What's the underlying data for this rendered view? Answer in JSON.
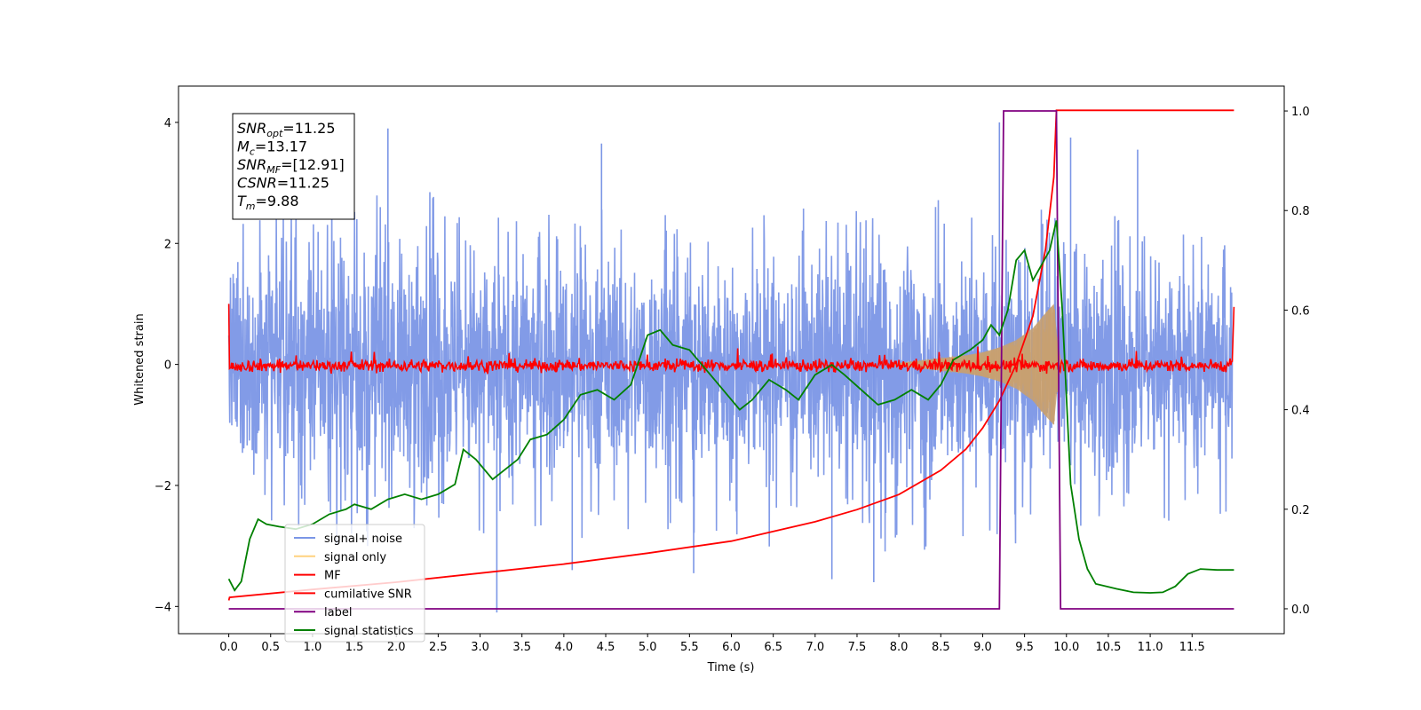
{
  "chart_data": {
    "type": "line",
    "xlabel": "Time (s)",
    "ylabel": "Whitened strain",
    "xlim": [
      -0.6,
      12.6
    ],
    "ylim_left": [
      -4.45,
      4.6
    ],
    "ylim_right": [
      -0.05,
      1.05
    ],
    "x_ticks": [
      "0.0",
      "0.5",
      "1.0",
      "1.5",
      "2.0",
      "2.5",
      "3.0",
      "3.5",
      "4.0",
      "4.5",
      "5.0",
      "5.5",
      "6.0",
      "6.5",
      "7.0",
      "7.5",
      "8.0",
      "8.5",
      "9.0",
      "9.5",
      "10.0",
      "10.5",
      "11.0",
      "11.5"
    ],
    "y_ticks_left": [
      "−4",
      "−2",
      "0",
      "2",
      "4"
    ],
    "y_ticks_right": [
      "0.0",
      "0.2",
      "0.4",
      "0.6",
      "0.8",
      "1.0"
    ],
    "legend": {
      "location": "lower-left",
      "entries": [
        {
          "label": "signal+ noise",
          "color": "#7b96e6"
        },
        {
          "label": "signal only",
          "color": "#ffd27f"
        },
        {
          "label": "MF",
          "color": "#ff0000"
        },
        {
          "label": "cumilative SNR",
          "color": "#ff0000"
        },
        {
          "label": "label",
          "color": "#800080"
        },
        {
          "label": "signal statistics",
          "color": "#008000"
        }
      ]
    },
    "annotation": [
      {
        "name": "SNR",
        "sub": "opt",
        "value": "=11.25"
      },
      {
        "name": "M",
        "sub": "c",
        "value": "=13.17"
      },
      {
        "name": "SNR",
        "sub": "MF",
        "value": "=[12.91]"
      },
      {
        "name": "CSNR",
        "sub": "",
        "value": "=11.25"
      },
      {
        "name": "T",
        "sub": "m",
        "value": "=9.88"
      }
    ],
    "series": [
      {
        "name": "signal+ noise",
        "axis": "left",
        "color": "#7b96e6",
        "description": "dense white noise between about -3.5 and 4",
        "envelope_upper": [
          [
            0.0,
            2.3
          ],
          [
            0.5,
            2.5
          ],
          [
            1.0,
            2.6
          ],
          [
            2.0,
            2.8
          ],
          [
            3.0,
            2.6
          ],
          [
            4.0,
            2.4
          ],
          [
            5.0,
            2.5
          ],
          [
            6.0,
            2.4
          ],
          [
            7.0,
            2.5
          ],
          [
            8.0,
            2.6
          ],
          [
            9.0,
            2.6
          ],
          [
            10.0,
            2.4
          ],
          [
            11.0,
            2.3
          ],
          [
            12.0,
            2.2
          ]
        ],
        "envelope_lower": [
          [
            0.0,
            -2.6
          ],
          [
            1.0,
            -2.9
          ],
          [
            2.0,
            -3.0
          ],
          [
            3.0,
            -2.9
          ],
          [
            4.0,
            -2.8
          ],
          [
            5.0,
            -2.8
          ],
          [
            6.0,
            -2.9
          ],
          [
            7.0,
            -2.9
          ],
          [
            8.0,
            -3.0
          ],
          [
            9.0,
            -2.9
          ],
          [
            10.0,
            -2.8
          ],
          [
            11.0,
            -2.7
          ],
          [
            12.0,
            -2.6
          ]
        ],
        "spikes": [
          [
            1.9,
            3.9
          ],
          [
            4.45,
            3.65
          ],
          [
            9.2,
            4.0
          ],
          [
            10.05,
            3.75
          ],
          [
            10.85,
            3.55
          ],
          [
            3.2,
            -4.1
          ],
          [
            7.2,
            -3.55
          ],
          [
            7.7,
            -3.6
          ],
          [
            4.1,
            -3.4
          ],
          [
            5.55,
            -3.45
          ]
        ]
      },
      {
        "name": "signal only",
        "axis": "left",
        "color": "#c8a070",
        "description": "chirp envelope growing toward merger at ~9.88 s",
        "envelope": [
          [
            8.0,
            0.02
          ],
          [
            8.5,
            0.1
          ],
          [
            8.8,
            0.15
          ],
          [
            9.0,
            0.2
          ],
          [
            9.2,
            0.28
          ],
          [
            9.4,
            0.4
          ],
          [
            9.6,
            0.6
          ],
          [
            9.75,
            0.85
          ],
          [
            9.85,
            1.0
          ],
          [
            9.9,
            0.3
          ],
          [
            9.95,
            0.0
          ]
        ]
      },
      {
        "name": "MF",
        "axis": "left",
        "color": "#ff0000",
        "description": "matched-filter output, noise around 0 with amplitude ~0.12",
        "start_value": 1.0,
        "end_value": 0.95
      },
      {
        "name": "cumilative SNR",
        "axis": "left",
        "color": "#ff0000",
        "points": [
          [
            0.0,
            -3.9
          ],
          [
            0.01,
            -3.85
          ],
          [
            1.0,
            -3.72
          ],
          [
            2.0,
            -3.6
          ],
          [
            3.0,
            -3.45
          ],
          [
            4.0,
            -3.3
          ],
          [
            5.0,
            -3.12
          ],
          [
            6.0,
            -2.92
          ],
          [
            7.0,
            -2.6
          ],
          [
            7.5,
            -2.4
          ],
          [
            8.0,
            -2.15
          ],
          [
            8.5,
            -1.75
          ],
          [
            8.8,
            -1.4
          ],
          [
            9.0,
            -1.05
          ],
          [
            9.2,
            -0.6
          ],
          [
            9.4,
            0.0
          ],
          [
            9.6,
            0.8
          ],
          [
            9.75,
            1.9
          ],
          [
            9.85,
            3.1
          ],
          [
            9.88,
            4.2
          ],
          [
            12.0,
            4.2
          ]
        ]
      },
      {
        "name": "label",
        "axis": "right",
        "color": "#800080",
        "points": [
          [
            0.0,
            0.0
          ],
          [
            9.2,
            0.0
          ],
          [
            9.25,
            1.0
          ],
          [
            9.88,
            1.0
          ],
          [
            9.93,
            0.0
          ],
          [
            12.0,
            0.0
          ]
        ]
      },
      {
        "name": "signal statistics",
        "axis": "right",
        "color": "#008000",
        "points": [
          [
            0.0,
            0.06
          ],
          [
            0.07,
            0.037
          ],
          [
            0.15,
            0.055
          ],
          [
            0.25,
            0.14
          ],
          [
            0.35,
            0.18
          ],
          [
            0.45,
            0.17
          ],
          [
            0.6,
            0.165
          ],
          [
            0.8,
            0.16
          ],
          [
            1.0,
            0.17
          ],
          [
            1.2,
            0.19
          ],
          [
            1.4,
            0.2
          ],
          [
            1.5,
            0.21
          ],
          [
            1.7,
            0.2
          ],
          [
            1.9,
            0.22
          ],
          [
            2.1,
            0.23
          ],
          [
            2.3,
            0.22
          ],
          [
            2.5,
            0.23
          ],
          [
            2.7,
            0.25
          ],
          [
            2.8,
            0.32
          ],
          [
            2.95,
            0.3
          ],
          [
            3.15,
            0.26
          ],
          [
            3.3,
            0.28
          ],
          [
            3.45,
            0.3
          ],
          [
            3.6,
            0.34
          ],
          [
            3.8,
            0.35
          ],
          [
            4.0,
            0.38
          ],
          [
            4.2,
            0.43
          ],
          [
            4.4,
            0.44
          ],
          [
            4.6,
            0.42
          ],
          [
            4.8,
            0.45
          ],
          [
            5.0,
            0.55
          ],
          [
            5.15,
            0.56
          ],
          [
            5.3,
            0.53
          ],
          [
            5.5,
            0.52
          ],
          [
            5.75,
            0.47
          ],
          [
            5.95,
            0.43
          ],
          [
            6.1,
            0.4
          ],
          [
            6.25,
            0.42
          ],
          [
            6.45,
            0.46
          ],
          [
            6.65,
            0.44
          ],
          [
            6.8,
            0.42
          ],
          [
            7.0,
            0.47
          ],
          [
            7.2,
            0.49
          ],
          [
            7.35,
            0.47
          ],
          [
            7.55,
            0.44
          ],
          [
            7.75,
            0.41
          ],
          [
            7.95,
            0.42
          ],
          [
            8.15,
            0.44
          ],
          [
            8.35,
            0.42
          ],
          [
            8.5,
            0.45
          ],
          [
            8.65,
            0.5
          ],
          [
            8.85,
            0.52
          ],
          [
            9.0,
            0.54
          ],
          [
            9.1,
            0.57
          ],
          [
            9.2,
            0.55
          ],
          [
            9.3,
            0.6
          ],
          [
            9.4,
            0.7
          ],
          [
            9.5,
            0.72
          ],
          [
            9.6,
            0.66
          ],
          [
            9.7,
            0.69
          ],
          [
            9.8,
            0.72
          ],
          [
            9.88,
            0.78
          ],
          [
            9.95,
            0.6
          ],
          [
            10.05,
            0.25
          ],
          [
            10.15,
            0.14
          ],
          [
            10.25,
            0.08
          ],
          [
            10.35,
            0.05
          ],
          [
            10.6,
            0.04
          ],
          [
            10.8,
            0.033
          ],
          [
            11.0,
            0.032
          ],
          [
            11.15,
            0.033
          ],
          [
            11.3,
            0.045
          ],
          [
            11.45,
            0.07
          ],
          [
            11.6,
            0.08
          ],
          [
            11.8,
            0.078
          ],
          [
            12.0,
            0.078
          ]
        ]
      }
    ]
  }
}
